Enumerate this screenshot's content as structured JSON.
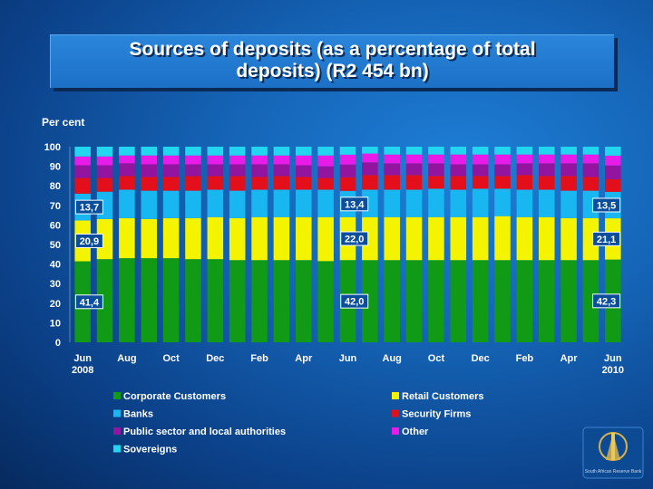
{
  "title": {
    "line1": "Sources of deposits (as a percentage of total",
    "line2": "deposits) (R2 454 bn)"
  },
  "colors": {
    "corporate": "#109a16",
    "retail": "#f4f400",
    "banks": "#19b7f2",
    "security": "#e3101b",
    "public": "#93149e",
    "other": "#e81ce8",
    "sovereigns": "#22d6f0",
    "annotation_box": "#0a4e9c"
  },
  "chart_data": {
    "type": "bar",
    "stacked": true,
    "ylabel": "Per cent",
    "ylim": [
      0,
      100
    ],
    "yticks": [
      0,
      10,
      20,
      30,
      40,
      50,
      60,
      70,
      80,
      90,
      100
    ],
    "grid": false,
    "x_tick_labels": [
      {
        "index": 0,
        "line1": "Jun",
        "line2": "2008"
      },
      {
        "index": 2,
        "line1": "Aug",
        "line2": ""
      },
      {
        "index": 4,
        "line1": "Oct",
        "line2": ""
      },
      {
        "index": 6,
        "line1": "Dec",
        "line2": ""
      },
      {
        "index": 8,
        "line1": "Feb",
        "line2": ""
      },
      {
        "index": 10,
        "line1": "Apr",
        "line2": ""
      },
      {
        "index": 12,
        "line1": "Jun",
        "line2": ""
      },
      {
        "index": 14,
        "line1": "Aug",
        "line2": ""
      },
      {
        "index": 16,
        "line1": "Oct",
        "line2": ""
      },
      {
        "index": 18,
        "line1": "Dec",
        "line2": ""
      },
      {
        "index": 20,
        "line1": "Feb",
        "line2": ""
      },
      {
        "index": 22,
        "line1": "Apr",
        "line2": ""
      },
      {
        "index": 24,
        "line1": "Jun",
        "line2": "2010"
      }
    ],
    "series": [
      {
        "name": "Corporate Customers",
        "color_key": "corporate",
        "values": [
          41.4,
          42.5,
          43.0,
          43.0,
          43.0,
          42.5,
          42.5,
          42.0,
          42.0,
          42.0,
          42.0,
          41.5,
          42.0,
          42.0,
          42.0,
          42.0,
          42.0,
          42.0,
          42.0,
          42.0,
          42.0,
          42.0,
          42.0,
          42.0,
          42.3
        ]
      },
      {
        "name": "Retail Customers",
        "color_key": "retail",
        "values": [
          20.9,
          20.5,
          20.5,
          20.0,
          20.5,
          21.0,
          21.5,
          21.5,
          22.0,
          22.0,
          22.0,
          22.5,
          22.0,
          22.0,
          22.0,
          22.0,
          22.0,
          22.0,
          22.0,
          22.5,
          22.0,
          22.0,
          21.5,
          21.5,
          21.1
        ]
      },
      {
        "name": "Banks",
        "color_key": "banks",
        "values": [
          13.7,
          14.0,
          14.5,
          14.5,
          14.0,
          14.0,
          14.0,
          14.0,
          14.0,
          14.0,
          14.0,
          14.0,
          13.4,
          14.0,
          14.0,
          14.0,
          14.5,
          14.0,
          14.5,
          14.0,
          14.0,
          14.0,
          14.0,
          14.0,
          13.5
        ]
      },
      {
        "name": "Security Firms",
        "color_key": "security",
        "values": [
          8.0,
          7.0,
          7.0,
          7.0,
          7.0,
          7.5,
          7.0,
          7.5,
          6.5,
          7.0,
          6.5,
          6.0,
          7.0,
          7.5,
          7.5,
          7.5,
          6.5,
          7.0,
          6.5,
          6.5,
          7.5,
          7.0,
          7.5,
          7.0,
          6.5
        ]
      },
      {
        "name": "Public sector and local authorities",
        "color_key": "public",
        "values": [
          6.5,
          6.5,
          6.5,
          6.5,
          6.5,
          6.0,
          6.0,
          6.0,
          6.5,
          6.0,
          6.0,
          6.0,
          6.5,
          6.5,
          6.0,
          6.0,
          6.5,
          6.0,
          6.0,
          6.0,
          6.0,
          6.5,
          6.5,
          7.0,
          7.0
        ]
      },
      {
        "name": "Other",
        "color_key": "other",
        "values": [
          4.5,
          4.5,
          4.0,
          4.5,
          4.5,
          4.5,
          4.5,
          4.5,
          4.5,
          4.5,
          5.0,
          5.5,
          5.0,
          4.5,
          4.5,
          4.5,
          4.5,
          5.0,
          5.0,
          5.0,
          4.5,
          4.5,
          4.5,
          4.5,
          5.0
        ]
      },
      {
        "name": "Sovereigns",
        "color_key": "sovereigns",
        "values": [
          5.0,
          5.0,
          4.5,
          4.5,
          4.5,
          4.5,
          4.5,
          4.5,
          4.5,
          4.5,
          4.5,
          4.5,
          4.1,
          3.5,
          4.0,
          4.0,
          4.0,
          4.0,
          4.0,
          4.0,
          4.0,
          4.0,
          4.0,
          4.0,
          4.6
        ]
      }
    ],
    "annotations": [
      {
        "text": "41,4",
        "bar_index": 0,
        "series_index": 0
      },
      {
        "text": "20,9",
        "bar_index": 0,
        "series_index": 1
      },
      {
        "text": "13,7",
        "bar_index": 0,
        "series_index": 2
      },
      {
        "text": "42,0",
        "bar_index": 12,
        "series_index": 0
      },
      {
        "text": "22,0",
        "bar_index": 12,
        "series_index": 1
      },
      {
        "text": "13,4",
        "bar_index": 12,
        "series_index": 2
      },
      {
        "text": "42,3",
        "bar_index": 24,
        "series_index": 0
      },
      {
        "text": "21,1",
        "bar_index": 24,
        "series_index": 1
      },
      {
        "text": "13,5",
        "bar_index": 24,
        "series_index": 2
      }
    ],
    "legend": {
      "placement": "bottom",
      "columns": [
        [
          "Corporate Customers",
          "Banks",
          "Public sector and local authorities",
          "Sovereigns"
        ],
        [
          "Retail Customers",
          "Security Firms",
          "Other"
        ]
      ]
    }
  },
  "logo": {
    "icon": "reserve-bank-logo-icon",
    "text": "South African Reserve Bank"
  }
}
